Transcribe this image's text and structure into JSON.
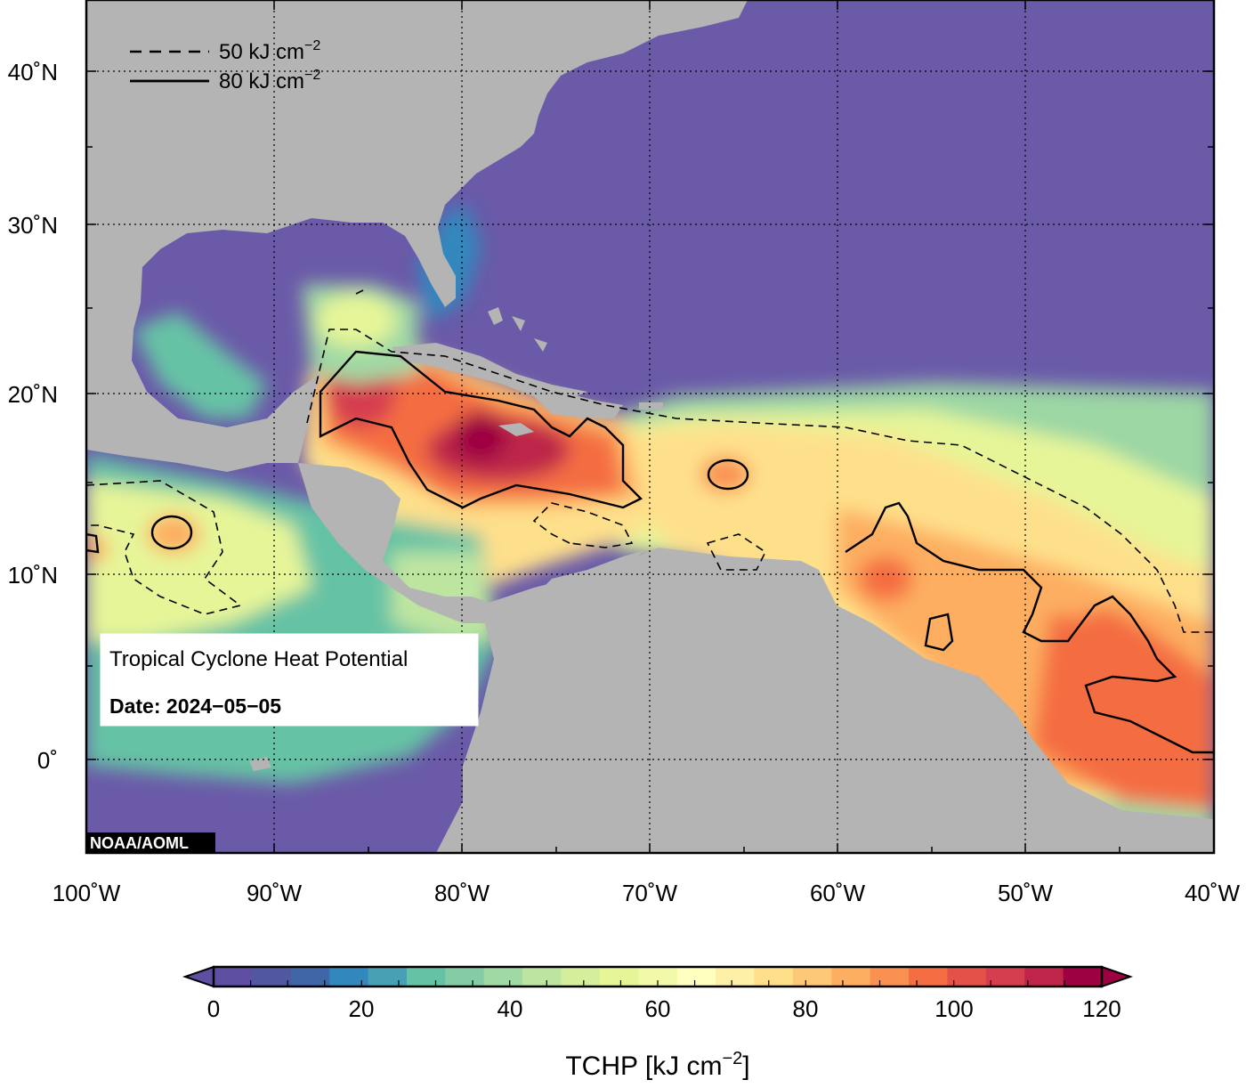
{
  "map": {
    "lon_ticks": [
      "100˚W",
      "90˚W",
      "80˚W",
      "70˚W",
      "60˚W",
      "50˚W",
      "40˚W"
    ],
    "lat_ticks": [
      "40˚N",
      "30˚N",
      "20˚N",
      "10˚N",
      "0˚"
    ],
    "credit": "NOAA/AOML",
    "colors": {
      "land": "#b4b4b4",
      "ocean_cold": "#6a5aa8",
      "grid": "#000000"
    }
  },
  "legend": {
    "dashed_label": "50 kJ cm",
    "solid_label": "80 kJ cm",
    "exponent": "−2"
  },
  "info_box": {
    "title": "Tropical Cyclone Heat Potential",
    "date": "Date: 2024−05−05"
  },
  "colorbar": {
    "ticks": [
      "0",
      "20",
      "40",
      "60",
      "80",
      "100",
      "120"
    ],
    "label": "TCHP [kJ cm",
    "label_exponent": "−2",
    "label_close": "]",
    "colors": [
      "#5e4fa2",
      "#51589f",
      "#4166a8",
      "#3288bd",
      "#47a0b3",
      "#66c2a5",
      "#83cca4",
      "#a0d9a4",
      "#bee5a0",
      "#d5ee9b",
      "#e6f598",
      "#f2f9a8",
      "#ffffbf",
      "#fff0a8",
      "#fee08b",
      "#fdc877",
      "#fdae61",
      "#f99153",
      "#f46d43",
      "#e35148",
      "#d53e4f",
      "#be2549",
      "#9e0142"
    ]
  }
}
